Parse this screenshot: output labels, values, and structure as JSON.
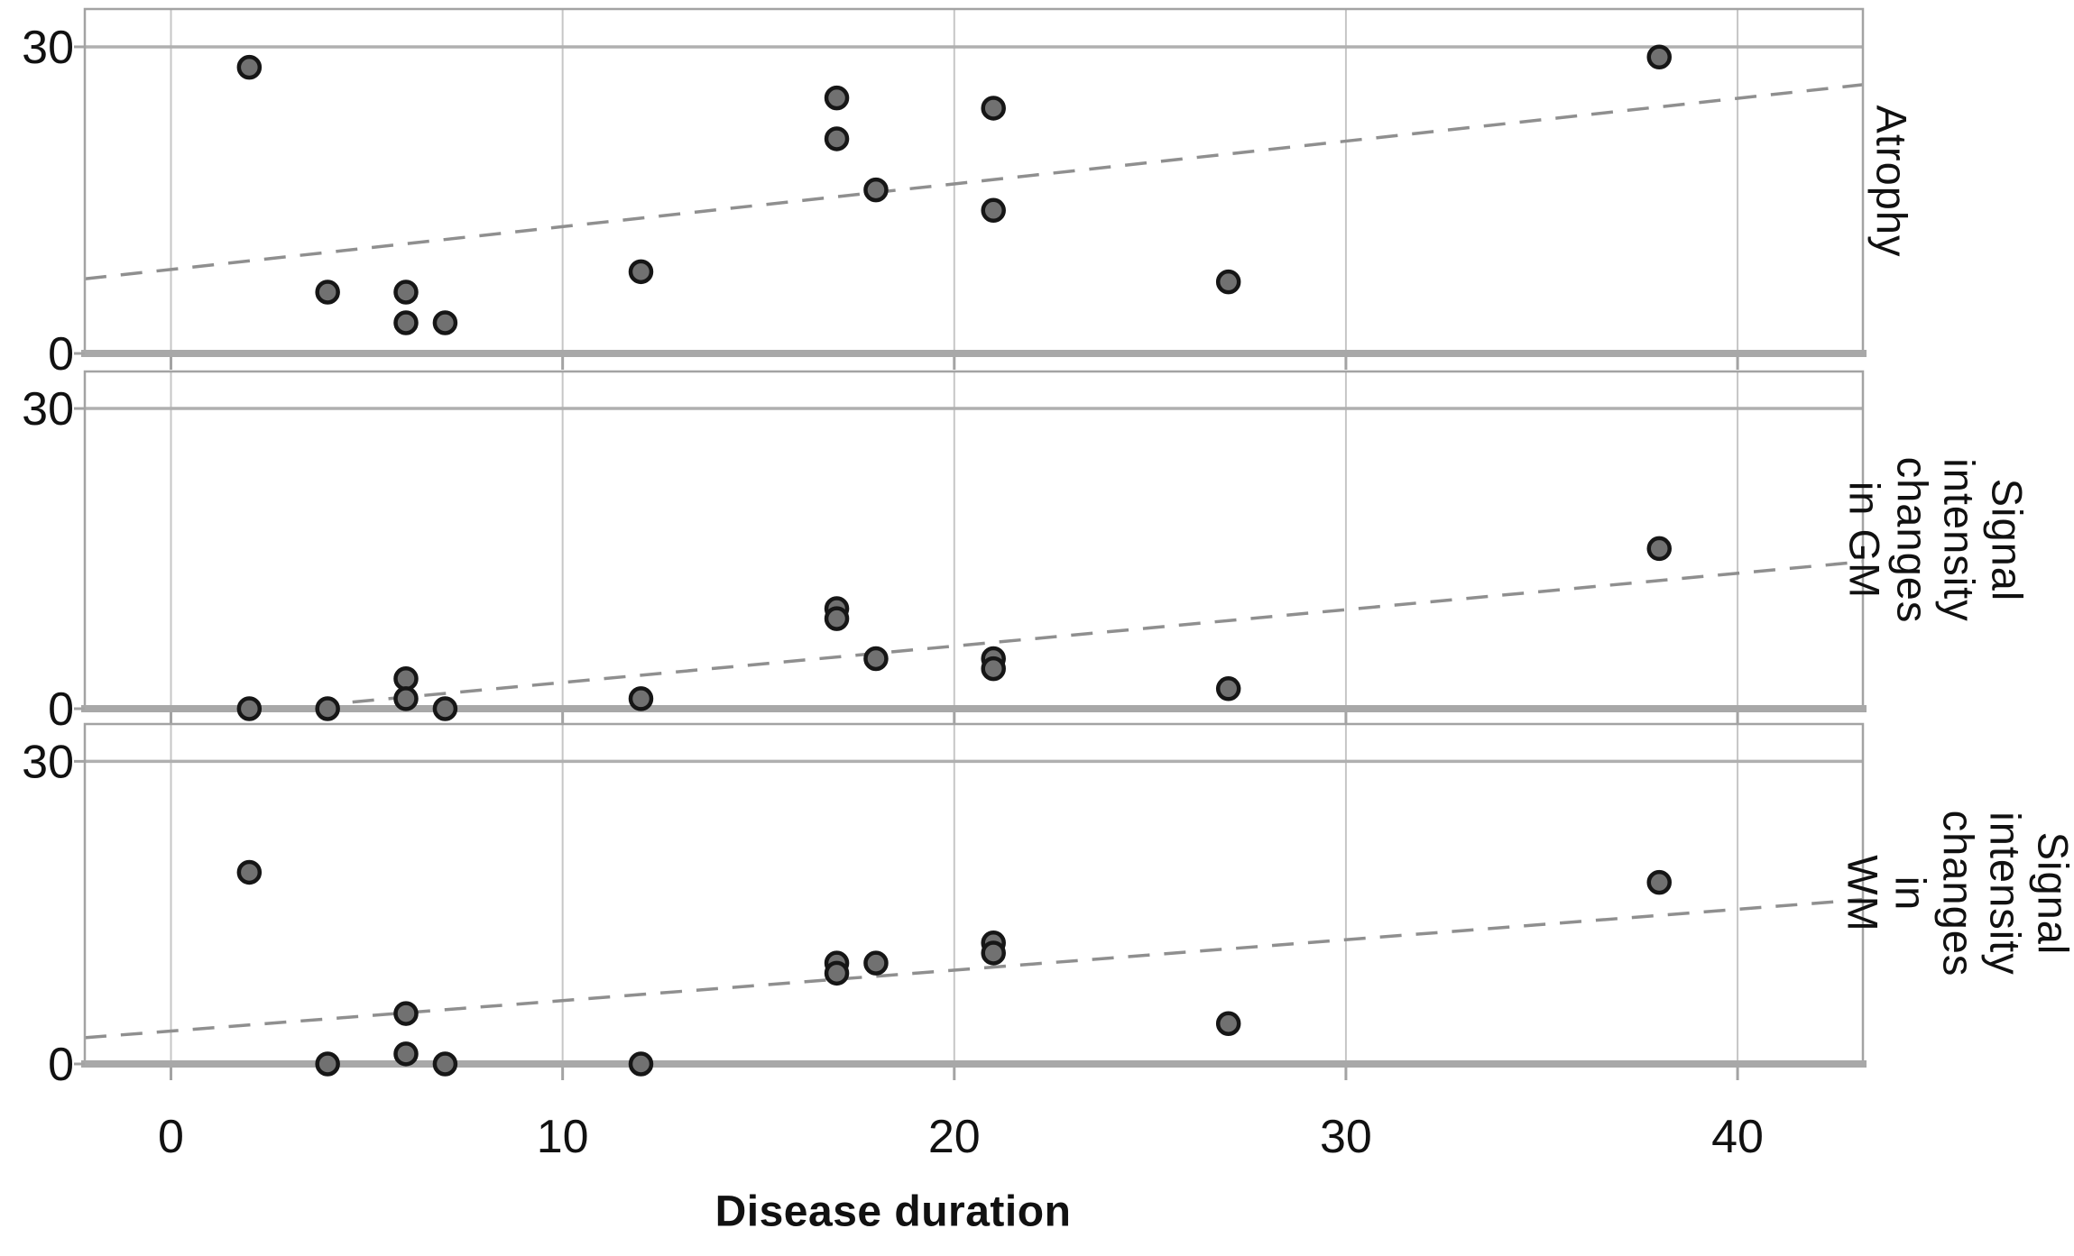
{
  "chart_data": {
    "type": "scatter",
    "layout": "3 vertically stacked panels sharing one x axis",
    "xlabel": "Disease duration",
    "xlim": [
      -2.2,
      43.2
    ],
    "ylim": [
      0,
      33.7
    ],
    "grid": true,
    "legend": "none",
    "x_ticks": [
      {
        "v": 0,
        "label": "0"
      },
      {
        "v": 10,
        "label": "10"
      },
      {
        "v": 20,
        "label": "20"
      },
      {
        "v": 30,
        "label": "30"
      },
      {
        "v": 40,
        "label": "40"
      }
    ],
    "y_ticks": [
      {
        "v": 30,
        "label": "30"
      },
      {
        "v": 0,
        "label": "0"
      }
    ],
    "panels": [
      {
        "label_text": "Atrophy",
        "points": [
          [
            2,
            28
          ],
          [
            4,
            6
          ],
          [
            6,
            6
          ],
          [
            6,
            3
          ],
          [
            7,
            3
          ],
          [
            12,
            8
          ],
          [
            17,
            25
          ],
          [
            17,
            21
          ],
          [
            18,
            16
          ],
          [
            21,
            24
          ],
          [
            21,
            14
          ],
          [
            27,
            7
          ],
          [
            38,
            29
          ]
        ],
        "trend": {
          "x1": -2.2,
          "y1": 7.3,
          "x2": 43.2,
          "y2": 26.3
        }
      },
      {
        "label_text": "Signal\nintensity\nchanges in GM",
        "points": [
          [
            2,
            0
          ],
          [
            4,
            0
          ],
          [
            6,
            3
          ],
          [
            6,
            1
          ],
          [
            7,
            0
          ],
          [
            12,
            1
          ],
          [
            17,
            10
          ],
          [
            17,
            9
          ],
          [
            18,
            5
          ],
          [
            21,
            5
          ],
          [
            21,
            4
          ],
          [
            27,
            2
          ],
          [
            38,
            16
          ]
        ],
        "trend": {
          "x1": 2.8,
          "y1": 0,
          "x2": 43.2,
          "y2": 14.7
        }
      },
      {
        "label_text": "Signal\nintensity\nchanges in\nWM",
        "points": [
          [
            2,
            19
          ],
          [
            4,
            0
          ],
          [
            6,
            5
          ],
          [
            6,
            1
          ],
          [
            7,
            0
          ],
          [
            12,
            0
          ],
          [
            17,
            10
          ],
          [
            17,
            9
          ],
          [
            18,
            10
          ],
          [
            21,
            12
          ],
          [
            21,
            11
          ],
          [
            27,
            4
          ],
          [
            38,
            18
          ]
        ],
        "trend": {
          "x1": -2.2,
          "y1": 2.6,
          "x2": 43.2,
          "y2": 16.3
        }
      }
    ],
    "colors": {
      "dot_fill": "#717171",
      "dot_stroke": "#161616",
      "gridline": "#c6c6c6",
      "panel_frame": "#a3a3a3",
      "baseline_axis": "#a8a8a8",
      "topline": "#b0b0b0",
      "trend": "#8f8f8f",
      "text": "#111111"
    }
  }
}
